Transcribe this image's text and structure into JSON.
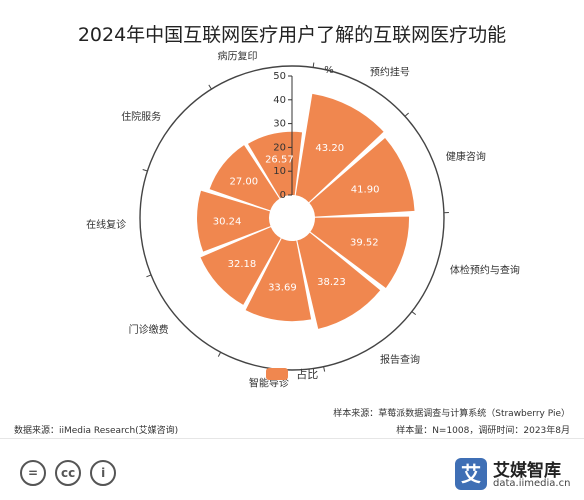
{
  "chart_data": {
    "type": "bar",
    "coordinate_system": "polar",
    "title": "2024年中国互联网医疗用户了解的互联网医疗功能",
    "unit": "%",
    "radial_ticks": [
      0,
      10,
      20,
      30,
      40,
      50
    ],
    "rlim": [
      0,
      50
    ],
    "legend_position": "bottom",
    "categories": [
      "预约挂号",
      "健康咨询",
      "体检预约与查询",
      "报告查询",
      "智能导诊",
      "门诊缴费",
      "在线复诊",
      "住院服务",
      "病历复印"
    ],
    "series": [
      {
        "name": "占比",
        "color": "#f0874f",
        "values": [
          43.2,
          41.9,
          39.52,
          38.23,
          33.69,
          32.18,
          30.24,
          27.0,
          26.57
        ],
        "value_labels": [
          "43.20",
          "41.90",
          "39.52",
          "38.23",
          "33.69",
          "32.18",
          "30.24",
          "27.00",
          "26.57"
        ]
      }
    ]
  },
  "source": {
    "sample_source": "样本来源：草莓派数据调查与计算系统（Strawberry Pie）",
    "data_source": "数据来源：iiMedia Research(艾媒咨询)",
    "sample_size": "样本量：N=1008，调研时间：2023年8月"
  },
  "footer": {
    "license_badges": [
      "=",
      "cc",
      "i"
    ],
    "brand_logo_char": "艾",
    "brand_name": "艾媒智库",
    "brand_url": "data.iimedia.cn"
  }
}
